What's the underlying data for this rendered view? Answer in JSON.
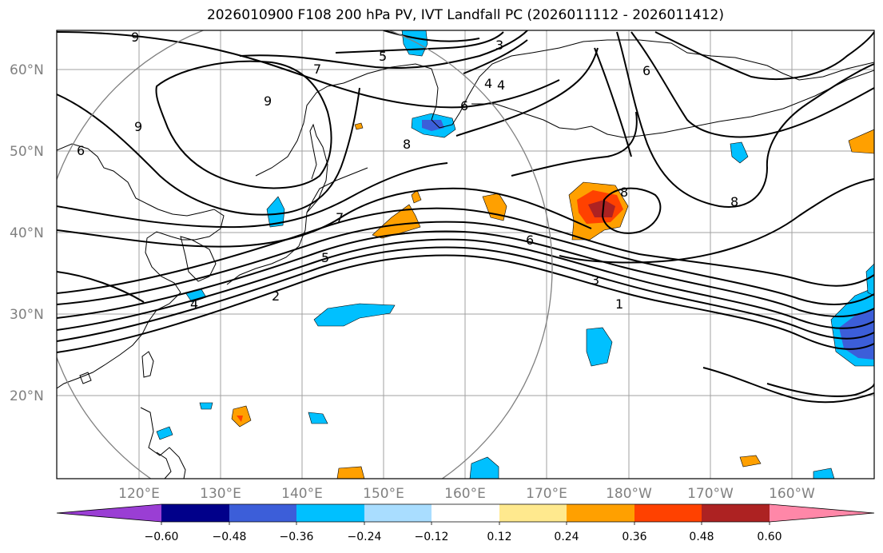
{
  "title": "2026010900 F108 200 hPa PV, IVT Landfall PC (2026011112 - 2026011412)",
  "map": {
    "lat_labels": [
      "60°N",
      "50°N",
      "40°N",
      "30°N",
      "20°N"
    ],
    "lon_labels": [
      "120°E",
      "130°E",
      "140°E",
      "150°E",
      "160°E",
      "170°E",
      "180°W",
      "170°W",
      "160°W"
    ],
    "contour_labels": [
      "9",
      "7",
      "5",
      "3",
      "4",
      "6",
      "8",
      "9",
      "9",
      "6",
      "8",
      "6",
      "8",
      "7",
      "6",
      "5",
      "4",
      "3",
      "2",
      "1",
      "4"
    ]
  },
  "colorbar": {
    "colors": [
      "#9a3ed4",
      "#01008a",
      "#3c5ed9",
      "#00c0ff",
      "#a9ddff",
      "#ffffff",
      "#ffe98e",
      "#ffa000",
      "#ff4100",
      "#ad2222",
      "#ff87a8"
    ],
    "tick_labels": [
      "−0.60",
      "−0.48",
      "−0.36",
      "−0.24",
      "−0.12",
      "0.12",
      "0.24",
      "0.36",
      "0.48",
      "0.60"
    ]
  }
}
